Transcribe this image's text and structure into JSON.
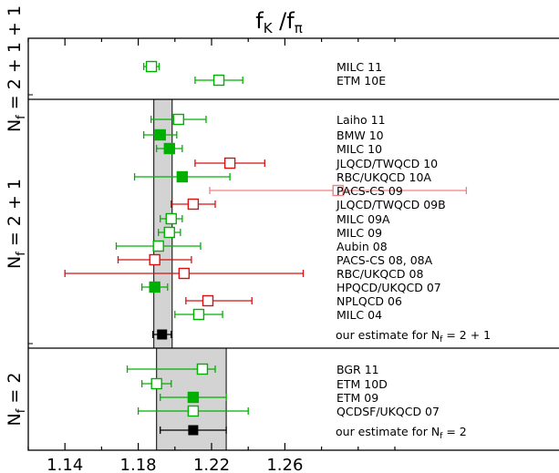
{
  "chart_data": {
    "type": "scatter",
    "title": {
      "main": "f",
      "sub1": "K",
      "sep": " /f",
      "sub2": "π"
    },
    "xlim": [
      1.12,
      1.32
    ],
    "xticks": [
      1.14,
      1.18,
      1.22,
      1.26
    ],
    "xtick_labels": [
      "1.14",
      "1.18",
      "1.22",
      "1.26"
    ],
    "colors": {
      "green": "#00b000",
      "red": "#d81010",
      "pink": "#f08080",
      "black": "#000000",
      "band": "#d3d3d3"
    },
    "panels": [
      {
        "id": "2p1p1",
        "label": {
          "main": "N",
          "sub": "f",
          "rest": " = 2 + 1 + 1"
        },
        "band": null,
        "points": [
          {
            "name": "MILC 11",
            "value": 1.1872,
            "err_lo": 0.0042,
            "err_hi": 0.0042,
            "color": "green",
            "filled": false
          },
          {
            "name": "ETM 10E",
            "value": 1.224,
            "err_lo": 0.013,
            "err_hi": 0.013,
            "color": "green",
            "filled": false
          }
        ]
      },
      {
        "id": "2p1",
        "label": {
          "main": "N",
          "sub": "f",
          "rest": " = 2 + 1"
        },
        "band": [
          1.1885,
          1.1985
        ],
        "estimate_label": {
          "text": "our estimate for N",
          "sub": "f",
          "rest": " = 2 + 1"
        },
        "estimate": {
          "value": 1.193,
          "err_lo": 0.005,
          "err_hi": 0.005
        },
        "points": [
          {
            "name": "Laiho 11",
            "value": 1.202,
            "err_lo": 0.015,
            "err_hi": 0.015,
            "color": "green",
            "filled": false
          },
          {
            "name": "BMW 10",
            "value": 1.192,
            "err_lo": 0.009,
            "err_hi": 0.009,
            "color": "green",
            "filled": true
          },
          {
            "name": "MILC 10",
            "value": 1.197,
            "err_lo": 0.007,
            "err_hi": 0.007,
            "color": "green",
            "filled": true
          },
          {
            "name": "JLQCD/TWQCD 10",
            "value": 1.23,
            "err_lo": 0.019,
            "err_hi": 0.019,
            "color": "red",
            "filled": false
          },
          {
            "name": "RBC/UKQCD 10A",
            "value": 1.204,
            "err_lo": 0.026,
            "err_hi": 0.026,
            "color": "green",
            "filled": true
          },
          {
            "name": "PACS-CS 09",
            "value": 1.289,
            "err_lo": 0.07,
            "err_hi": 0.07,
            "color": "pink",
            "filled": false
          },
          {
            "name": "JLQCD/TWQCD 09B",
            "value": 1.21,
            "err_lo": 0.012,
            "err_hi": 0.012,
            "color": "red",
            "filled": false
          },
          {
            "name": "MILC 09A",
            "value": 1.198,
            "err_lo": 0.006,
            "err_hi": 0.006,
            "color": "green",
            "filled": false
          },
          {
            "name": "MILC 09",
            "value": 1.197,
            "err_lo": 0.006,
            "err_hi": 0.006,
            "color": "green",
            "filled": false
          },
          {
            "name": "Aubin 08",
            "value": 1.191,
            "err_lo": 0.023,
            "err_hi": 0.023,
            "color": "green",
            "filled": false
          },
          {
            "name": "PACS-CS 08, 08A",
            "value": 1.189,
            "err_lo": 0.02,
            "err_hi": 0.02,
            "color": "red",
            "filled": false
          },
          {
            "name": "RBC/UKQCD 08",
            "value": 1.205,
            "err_lo": 0.065,
            "err_hi": 0.065,
            "color": "red",
            "filled": false
          },
          {
            "name": "HPQCD/UKQCD 07",
            "value": 1.189,
            "err_lo": 0.007,
            "err_hi": 0.007,
            "color": "green",
            "filled": true
          },
          {
            "name": "NPLQCD 06",
            "value": 1.218,
            "err_lo": 0.012,
            "err_hi": 0.024,
            "color": "red",
            "filled": false
          },
          {
            "name": "MILC 04",
            "value": 1.213,
            "err_lo": 0.013,
            "err_hi": 0.013,
            "color": "green",
            "filled": false
          }
        ]
      },
      {
        "id": "2",
        "label": {
          "main": "N",
          "sub": "f",
          "rest": " = 2"
        },
        "band": [
          1.19,
          1.228
        ],
        "estimate_label": {
          "text": "our estimate for N",
          "sub": "f",
          "rest": " = 2"
        },
        "estimate": {
          "value": 1.21,
          "err_lo": 0.018,
          "err_hi": 0.018
        },
        "points": [
          {
            "name": "BGR 11",
            "value": 1.215,
            "err_lo": 0.041,
            "err_hi": 0.007,
            "color": "green",
            "filled": false
          },
          {
            "name": "ETM 10D",
            "value": 1.19,
            "err_lo": 0.008,
            "err_hi": 0.008,
            "color": "green",
            "filled": false
          },
          {
            "name": "ETM 09",
            "value": 1.21,
            "err_lo": 0.018,
            "err_hi": 0.018,
            "color": "green",
            "filled": true
          },
          {
            "name": "QCDSF/UKQCD 07",
            "value": 1.21,
            "err_lo": 0.03,
            "err_hi": 0.03,
            "color": "green",
            "filled": false
          }
        ]
      }
    ]
  }
}
